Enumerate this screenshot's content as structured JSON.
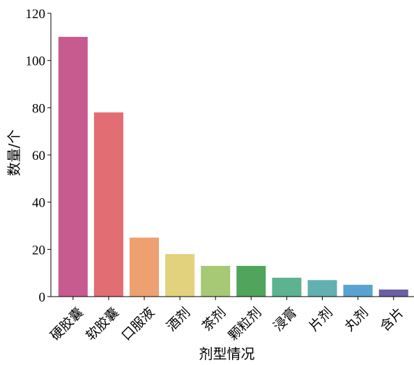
{
  "chart_data": {
    "type": "bar",
    "title": "",
    "xlabel": "剂型情况",
    "ylabel": "数量/个",
    "categories": [
      "硬胶囊",
      "软胶囊",
      "口服液",
      "酒剂",
      "茶剂",
      "颗粒剂",
      "浸膏",
      "片剂",
      "丸剂",
      "含片"
    ],
    "values": [
      110,
      78,
      25,
      18,
      13,
      13,
      8,
      7,
      5,
      3
    ],
    "colors": [
      "#c75a8f",
      "#e26d72",
      "#efa070",
      "#e2d27d",
      "#a7c874",
      "#51a45c",
      "#5bb38f",
      "#63b0b0",
      "#5aa3d0",
      "#6b5fa5"
    ],
    "ylim": [
      0,
      120
    ],
    "yticks": [
      0,
      20,
      40,
      60,
      80,
      100,
      120
    ],
    "grid": false,
    "legend": "none"
  }
}
